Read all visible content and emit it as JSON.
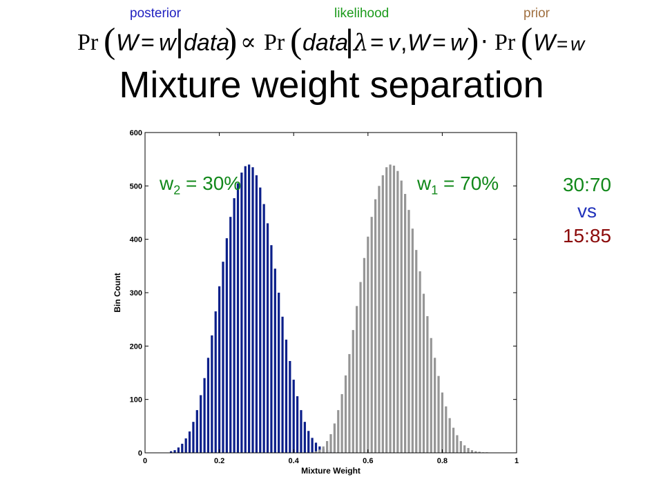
{
  "header": {
    "posterior_label": "posterior",
    "likelihood_label": "likelihood",
    "prior_label": "prior",
    "colors": {
      "posterior": "#1f1fc0",
      "likelihood": "#1a9a1a",
      "prior": "#a07040"
    }
  },
  "formula": {
    "pr": "Pr",
    "W": "W",
    "eq": "=",
    "w": "w",
    "bar": "|",
    "data": "data",
    "propto": "∝",
    "lambda": "λ",
    "v": "v",
    "comma": ",",
    "times": "⋅"
  },
  "title": "Mixture weight separation",
  "annotations": {
    "w2_pre": "w",
    "w2_sub": "2",
    "w2_post": " = 30%",
    "w1_pre": "w",
    "w1_sub": "1",
    "w1_post": " = 70%",
    "color": "#11881a"
  },
  "side": {
    "ratio1": "30:70",
    "vs": "vs",
    "ratio2": "15:85",
    "colors": {
      "ratio1": "#11881a",
      "vs": "#2233bb",
      "ratio2": "#8b0a0a"
    }
  },
  "chart_data": {
    "type": "bar",
    "xlabel": "Mixture Weight",
    "ylabel": "Bin Count",
    "xlim": [
      0,
      1
    ],
    "ylim": [
      0,
      600
    ],
    "xticks": [
      0,
      0.2,
      0.4,
      0.6,
      0.8,
      1
    ],
    "xtick_labels": [
      "0",
      "0.2",
      "0.4",
      "0.6",
      "0.8",
      "1"
    ],
    "yticks": [
      0,
      100,
      200,
      300,
      400,
      500,
      600
    ],
    "ytick_labels": [
      "0",
      "100",
      "200",
      "300",
      "400",
      "500",
      "600"
    ],
    "series": [
      {
        "color": "#0b1f8a",
        "x": [
          0.07,
          0.08,
          0.09,
          0.1,
          0.11,
          0.12,
          0.13,
          0.14,
          0.15,
          0.16,
          0.17,
          0.18,
          0.19,
          0.2,
          0.21,
          0.22,
          0.23,
          0.24,
          0.25,
          0.26,
          0.27,
          0.28,
          0.29,
          0.3,
          0.31,
          0.32,
          0.33,
          0.34,
          0.35,
          0.36,
          0.37,
          0.38,
          0.39,
          0.4,
          0.41,
          0.42,
          0.43,
          0.44,
          0.45,
          0.46,
          0.47,
          0.48,
          0.49,
          0.5,
          0.51,
          0.52,
          0.53,
          0.54,
          0.55
        ],
        "values": [
          3,
          5,
          10,
          17,
          27,
          40,
          58,
          80,
          108,
          140,
          178,
          220,
          265,
          312,
          358,
          402,
          442,
          477,
          505,
          525,
          537,
          540,
          535,
          520,
          497,
          466,
          430,
          389,
          345,
          300,
          255,
          212,
          172,
          137,
          106,
          80,
          58,
          41,
          28,
          19,
          12,
          8,
          5,
          3,
          2,
          1,
          1,
          0,
          0
        ]
      },
      {
        "color": "#969696",
        "x": [
          0.45,
          0.46,
          0.47,
          0.48,
          0.49,
          0.5,
          0.51,
          0.52,
          0.53,
          0.54,
          0.55,
          0.56,
          0.57,
          0.58,
          0.59,
          0.6,
          0.61,
          0.62,
          0.63,
          0.64,
          0.65,
          0.66,
          0.67,
          0.68,
          0.69,
          0.7,
          0.71,
          0.72,
          0.73,
          0.74,
          0.75,
          0.76,
          0.77,
          0.78,
          0.79,
          0.8,
          0.81,
          0.82,
          0.83,
          0.84,
          0.85,
          0.86,
          0.87,
          0.88,
          0.89,
          0.9,
          0.91,
          0.92,
          0.93,
          0.94
        ],
        "values": [
          1,
          3,
          6,
          12,
          22,
          35,
          55,
          80,
          110,
          145,
          185,
          230,
          275,
          320,
          365,
          405,
          442,
          475,
          500,
          520,
          535,
          540,
          538,
          528,
          510,
          485,
          455,
          420,
          380,
          340,
          298,
          256,
          215,
          178,
          144,
          113,
          87,
          65,
          47,
          33,
          22,
          14,
          9,
          5,
          3,
          2,
          1,
          1,
          0,
          0
        ]
      }
    ]
  }
}
